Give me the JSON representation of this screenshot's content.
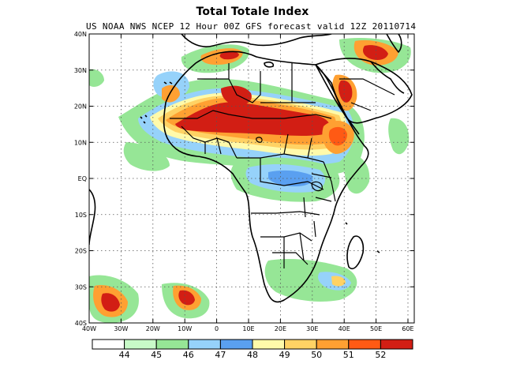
{
  "title": "Total Totale Index",
  "subtitle": "US NOAA NWS NCEP 12 Hour 00Z GFS forecast valid 12Z 20110714",
  "lat_labels": [
    "40N",
    "30N",
    "20N",
    "10N",
    "EQ",
    "10S",
    "20S",
    "30S",
    "40S"
  ],
  "lon_labels": [
    "40W",
    "30W",
    "20W",
    "10W",
    "0",
    "10E",
    "20E",
    "30E",
    "40E",
    "50E",
    "60E"
  ],
  "colorbar": {
    "colors": [
      "#ffffff",
      "#c8fac8",
      "#96e696",
      "#96d2fa",
      "#5aa0f0",
      "#fffaaa",
      "#ffd264",
      "#ffa032",
      "#ff5a14",
      "#d21e14"
    ],
    "labels": [
      "44",
      "45",
      "46",
      "47",
      "48",
      "49",
      "50",
      "51",
      "52"
    ]
  }
}
